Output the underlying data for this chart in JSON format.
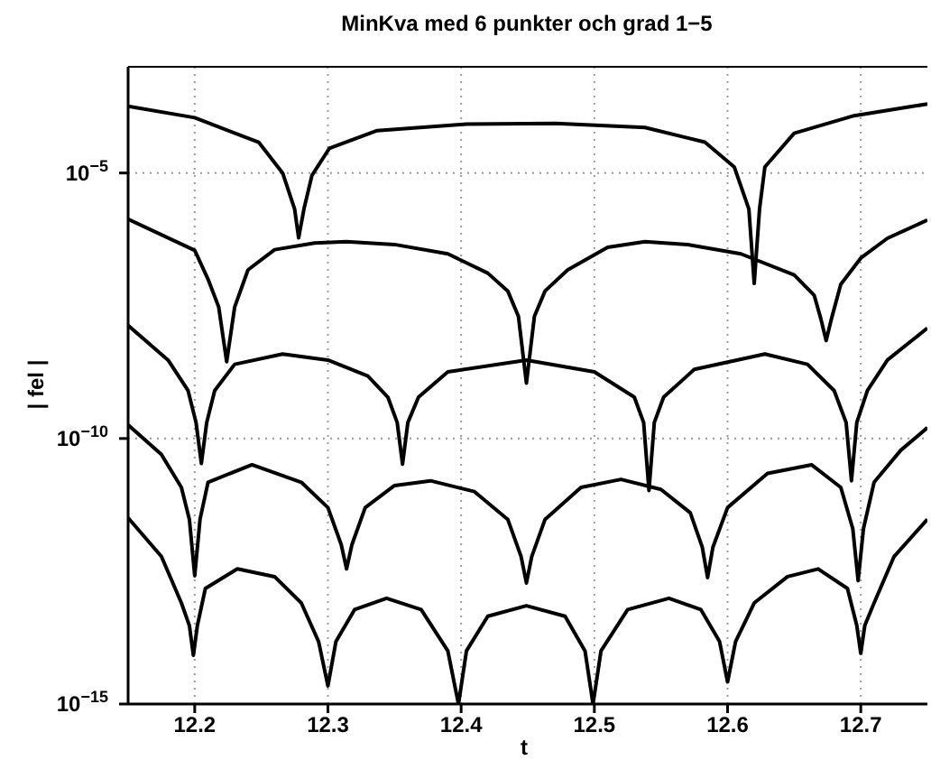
{
  "chart_data": {
    "type": "line",
    "title": "MinKva med 6 punkter och grad 1−5",
    "xlabel": "t",
    "ylabel": "| fel |",
    "log": "y",
    "grid": true,
    "marker": "none",
    "line_style": "solid",
    "xlim": [
      12.15,
      12.75
    ],
    "xticks": [
      12.2,
      12.3,
      12.4,
      12.5,
      12.6,
      12.7
    ],
    "ylim": [
      1e-15,
      0.001
    ],
    "yticks": [
      {
        "value": 1e-15,
        "label": "10$^{−15}$"
      },
      {
        "value": 1e-10,
        "label": "10$^{−10}$"
      },
      {
        "value": 1e-05,
        "label": "10$^{−5}$"
      }
    ],
    "series": [
      {
        "color": "#000000",
        "x": [
          12.15,
          12.2,
          12.248,
          12.266,
          12.275,
          12.278,
          12.282,
          12.288,
          12.301,
          12.337,
          12.404,
          12.471,
          12.538,
          12.583,
          12.605,
          12.616,
          12.62,
          12.624,
          12.628,
          12.65,
          12.695,
          12.739,
          12.75
        ],
        "values": [
          0.00018,
          0.00011,
          3.8e-05,
          1e-05,
          2.1e-06,
          6e-07,
          2.1e-06,
          9e-06,
          2.9e-05,
          6.3e-05,
          8.3e-05,
          8.6e-05,
          7.2e-05,
          3.8e-05,
          1.3e-05,
          2.1e-06,
          8.3e-08,
          2.1e-06,
          1.3e-05,
          5.6e-05,
          0.00012,
          0.00018,
          0.0002
        ]
      },
      {
        "color": "#000000",
        "x": [
          12.15,
          12.2,
          12.21,
          12.218,
          12.224,
          12.23,
          12.24,
          12.26,
          12.29,
          12.314,
          12.35,
          12.39,
          12.42,
          12.435,
          12.443,
          12.449,
          12.455,
          12.463,
          12.48,
          12.51,
          12.538,
          12.57,
          12.61,
          12.65,
          12.665,
          12.67,
          12.674,
          12.678,
          12.685,
          12.7,
          12.72,
          12.75
        ],
        "values": [
          1.35e-06,
          3.5e-07,
          1e-07,
          3e-08,
          2.8e-09,
          3e-08,
          1.5e-07,
          3.6e-07,
          4.8e-07,
          5.1e-07,
          4.5e-07,
          3e-07,
          1.3e-07,
          6e-08,
          2e-08,
          1.1e-09,
          2e-08,
          6e-08,
          1.5e-07,
          4e-07,
          5.1e-07,
          4.5e-07,
          3e-07,
          1.2e-07,
          5e-08,
          1.8e-08,
          7e-09,
          1.8e-08,
          8e-08,
          2.5e-07,
          5.9e-07,
          1.3e-06
        ]
      },
      {
        "color": "#000000",
        "x": [
          12.15,
          12.18,
          12.195,
          12.201,
          12.205,
          12.209,
          12.215,
          12.23,
          12.266,
          12.3,
          12.33,
          12.345,
          12.352,
          12.356,
          12.36,
          12.368,
          12.39,
          12.449,
          12.5,
          12.53,
          12.537,
          12.541,
          12.545,
          12.552,
          12.575,
          12.628,
          12.66,
          12.68,
          12.689,
          12.693,
          12.697,
          12.705,
          12.72,
          12.75
        ],
        "values": [
          1.35e-08,
          3e-09,
          8e-10,
          2e-10,
          3.4e-11,
          2e-10,
          8e-10,
          2.5e-09,
          3.9e-09,
          3e-09,
          1.5e-09,
          6e-10,
          2e-10,
          3.3e-11,
          2e-10,
          6e-10,
          1.8e-09,
          3e-09,
          1.8e-09,
          6e-10,
          2e-10,
          1.05e-11,
          2e-10,
          6e-10,
          2e-09,
          3.9e-09,
          2.5e-09,
          8e-10,
          2e-10,
          1.6e-11,
          2e-10,
          8e-10,
          3e-09,
          1.2e-08
        ]
      },
      {
        "color": "#000000",
        "x": [
          12.15,
          12.175,
          12.19,
          12.196,
          12.2,
          12.204,
          12.21,
          12.243,
          12.28,
          12.3,
          12.31,
          12.314,
          12.318,
          12.328,
          12.35,
          12.377,
          12.41,
          12.435,
          12.445,
          12.449,
          12.453,
          12.463,
          12.49,
          12.52,
          12.55,
          12.572,
          12.581,
          12.585,
          12.589,
          12.6,
          12.63,
          12.663,
          12.685,
          12.694,
          12.698,
          12.702,
          12.71,
          12.73,
          12.75
        ],
        "values": [
          1.8e-10,
          5e-11,
          1.2e-11,
          3e-12,
          2.6e-13,
          3e-12,
          1.5e-11,
          3.2e-11,
          1.5e-11,
          5e-12,
          1e-12,
          3.5e-13,
          1e-12,
          5e-12,
          1.3e-11,
          1.6e-11,
          1e-11,
          3e-12,
          6e-13,
          1.9e-13,
          6e-13,
          3e-12,
          1.2e-11,
          1.7e-11,
          1.1e-11,
          4e-12,
          9e-13,
          2.4e-13,
          9e-13,
          5e-12,
          2.2e-11,
          3.2e-11,
          1.2e-11,
          2e-12,
          2.1e-13,
          2e-12,
          1.5e-11,
          6e-11,
          1.6e-10
        ]
      },
      {
        "color": "#000000",
        "x": [
          12.15,
          12.175,
          12.19,
          12.196,
          12.199,
          12.202,
          12.208,
          12.232,
          12.26,
          12.28,
          12.293,
          12.3,
          12.306,
          12.32,
          12.344,
          12.37,
          12.39,
          12.398,
          12.404,
          12.42,
          12.449,
          12.478,
          12.493,
          12.499,
          12.505,
          12.525,
          12.556,
          12.58,
          12.594,
          12.6,
          12.606,
          12.62,
          12.645,
          12.668,
          12.69,
          12.697,
          12.7,
          12.703,
          12.71,
          12.725,
          12.75
        ],
        "values": [
          3.2e-12,
          6e-13,
          8e-14,
          3e-14,
          8.3e-15,
          3e-14,
          1.5e-13,
          3.5e-13,
          2.5e-13,
          8e-14,
          1.5e-14,
          2.2e-15,
          1.5e-14,
          6e-14,
          9.8e-14,
          6e-14,
          1e-14,
          1e-15,
          1e-14,
          4.5e-14,
          7.1e-14,
          4.5e-14,
          1e-14,
          1e-15,
          1e-14,
          6e-14,
          9.8e-14,
          6e-14,
          1.5e-14,
          2.6e-15,
          1.5e-14,
          8e-14,
          2.5e-13,
          3.5e-13,
          1.5e-13,
          3e-14,
          9e-15,
          3e-14,
          8e-14,
          6e-13,
          3e-12
        ]
      }
    ]
  }
}
